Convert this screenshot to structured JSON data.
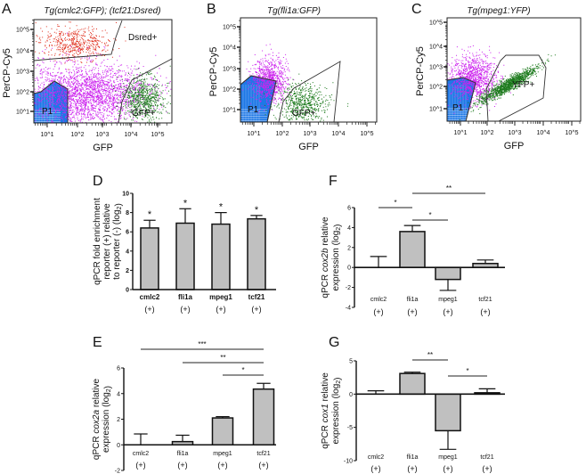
{
  "colors": {
    "bar_fill": "#c0c0c0",
    "bar_stroke": "#111111",
    "gate_p1": "#1e78e6",
    "dsred": "#e0301e",
    "gfp": "#1c7a1c",
    "other_events": "#cc22ee"
  },
  "flow_panels": [
    {
      "letter": "A",
      "title": "Tg(cmlc2:GFP); (tcf21:Dsred)",
      "xlabel": "GFP",
      "ylabel": "PerCP-Cy5",
      "x_ticks": [
        "10^1",
        "10^2",
        "10^3",
        "10^4",
        "10^5"
      ],
      "y_ticks": [
        "10^1",
        "10^2",
        "10^3",
        "10^4",
        "10^5"
      ],
      "gates": [
        "P1",
        "Dsred+",
        "GFP+"
      ]
    },
    {
      "letter": "B",
      "title": "Tg(fli1a:GFP)",
      "xlabel": "GFP",
      "ylabel": "PerCP-Cy5",
      "x_ticks": [
        "10^1",
        "10^2",
        "10^3",
        "10^4",
        "10^5"
      ],
      "y_ticks": [
        "10^1",
        "10^2",
        "10^3",
        "10^4",
        "10^5"
      ],
      "gates": [
        "P1",
        "GFP+"
      ]
    },
    {
      "letter": "C",
      "title": "Tg(mpeg1:YFP)",
      "xlabel": "GFP",
      "ylabel": "PerCP-Cy5",
      "x_ticks": [
        "10^1",
        "10^2",
        "10^3",
        "10^4",
        "10^5"
      ],
      "y_ticks": [
        "10^1",
        "10^2",
        "10^3",
        "10^4",
        "10^5"
      ],
      "gates": [
        "P1",
        "YFP+"
      ]
    }
  ],
  "chart_data": [
    {
      "panel": "D",
      "type": "bar",
      "categories": [
        "cmlc2",
        "fli1a",
        "mpeg1",
        "tcf21"
      ],
      "sublabels": [
        "(+)",
        "(+)",
        "(+)",
        "(+)"
      ],
      "values": [
        6.4,
        6.9,
        6.8,
        7.35
      ],
      "error_upper": [
        7.2,
        8.4,
        8.0,
        7.7
      ],
      "annotations": [
        "*",
        "*",
        "*",
        "*"
      ],
      "ylabel_lines": [
        "qPCR fold enrichment",
        "reporter (+) relative",
        "to reporter (-) (log2)"
      ],
      "ylim": [
        0,
        10
      ],
      "yticks": [
        0,
        2,
        4,
        6,
        8,
        10
      ],
      "bold_categories": true,
      "significance": []
    },
    {
      "panel": "E",
      "type": "bar",
      "categories": [
        "cmlc2",
        "fli1a",
        "mpeg1",
        "tcf21"
      ],
      "sublabels": [
        "(+)",
        "(+)",
        "(+)",
        "(+)"
      ],
      "values": [
        0,
        0.25,
        2.1,
        4.35
      ],
      "error_upper": [
        0.85,
        0.75,
        2.2,
        4.8
      ],
      "ylabel_lines": [
        "qPCR cox2a relative",
        "expression (log2)"
      ],
      "ylim": [
        -2,
        6
      ],
      "yticks": [
        -2,
        0,
        2,
        4,
        6
      ],
      "significance": [
        {
          "from": "cmlc2",
          "to": "tcf21",
          "label": "***"
        },
        {
          "from": "fli1a",
          "to": "tcf21",
          "label": "**"
        },
        {
          "from": "mpeg1",
          "to": "tcf21",
          "label": "*"
        }
      ]
    },
    {
      "panel": "F",
      "type": "bar",
      "categories": [
        "cmlc2",
        "fli1a",
        "mpeg1",
        "tcf21"
      ],
      "sublabels": [
        "(+)",
        "(+)",
        "(+)",
        "(+)"
      ],
      "values": [
        0,
        3.6,
        -1.2,
        0.4
      ],
      "error_upper": [
        1.1,
        4.2,
        -2.3,
        0.75
      ],
      "ylabel_lines": [
        "qPCR cox2b relative",
        "expression (log2)"
      ],
      "ylim": [
        -4,
        6
      ],
      "yticks": [
        -4,
        -2,
        0,
        2,
        4,
        6
      ],
      "significance": [
        {
          "from": "cmlc2",
          "to": "fli1a",
          "label": "*"
        },
        {
          "from": "fli1a",
          "to": "tcf21",
          "label": "**"
        },
        {
          "from": "fli1a",
          "to": "mpeg1",
          "label": "*"
        }
      ]
    },
    {
      "panel": "G",
      "type": "bar",
      "categories": [
        "cmlc2",
        "fli1a",
        "mpeg1",
        "tcf21"
      ],
      "sublabels": [
        "(+)",
        "(+)",
        "(+)",
        "(+)"
      ],
      "values": [
        0,
        3.1,
        -5.5,
        0.2
      ],
      "error_upper": [
        0.5,
        3.3,
        -8.3,
        0.8
      ],
      "ylabel_lines": [
        "qPCR cox1 relative",
        "expression (log2)"
      ],
      "ylim": [
        -10,
        5
      ],
      "yticks": [
        -10,
        -5,
        0,
        5
      ],
      "significance": [
        {
          "from": "fli1a",
          "to": "mpeg1",
          "label": "**"
        },
        {
          "from": "mpeg1",
          "to": "tcf21",
          "label": "*"
        }
      ]
    }
  ]
}
